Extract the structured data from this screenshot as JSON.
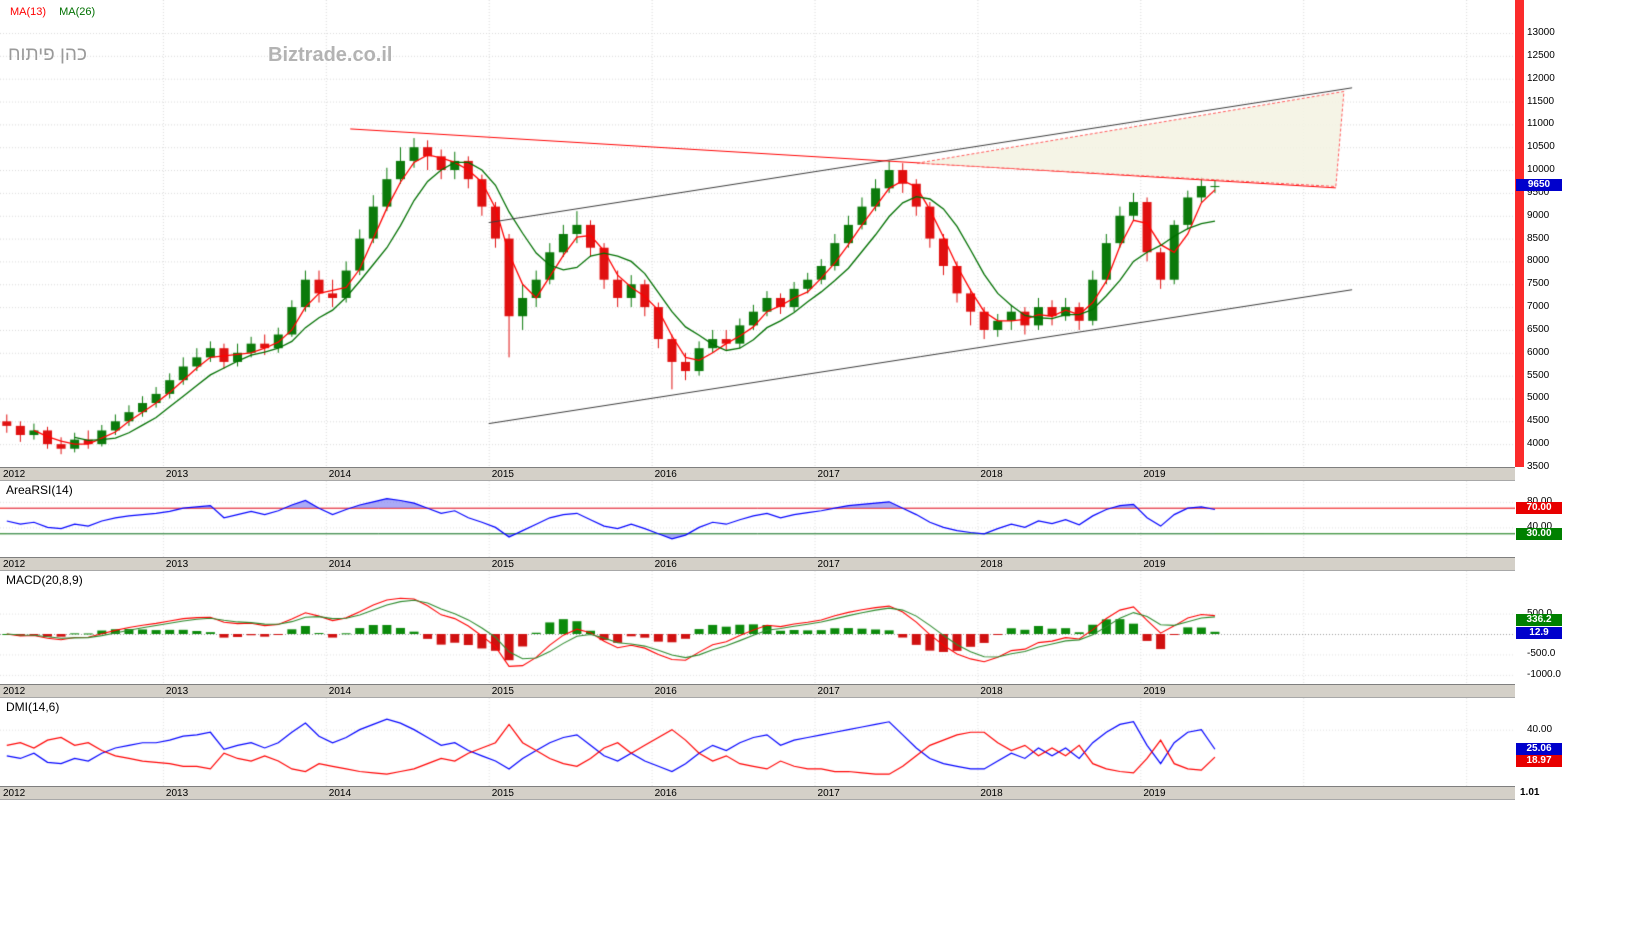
{
  "main": {
    "instrument": "כהן פיתוח",
    "watermark": "Biztrade.co.il",
    "last_price_label": "9650",
    "last_price_badge_color": "#0000cc",
    "legend": [
      {
        "label": "MA(13)",
        "color": "#ff0000"
      },
      {
        "label": "MA(26)",
        "color": "#007000"
      }
    ]
  },
  "x_axis": {
    "years": [
      "2012",
      "2013",
      "2014",
      "2015",
      "2016",
      "2017",
      "2018",
      "2019"
    ]
  },
  "panels": {
    "rsi": {
      "title": "AreaRSI(14)",
      "axis_labels": [
        {
          "v": 80,
          "text": "80.00"
        },
        {
          "v": 40,
          "text": "40.00"
        }
      ],
      "badges": [
        {
          "text": "70.00",
          "bg": "#e80000",
          "v": 70
        },
        {
          "text": "30.00",
          "bg": "#008000",
          "v": 30
        }
      ]
    },
    "macd": {
      "title": "MACD(20,8,9)",
      "axis_labels": [
        {
          "v": 500,
          "text": "500.0"
        },
        {
          "v": -500,
          "text": "-500.0"
        },
        {
          "v": -1000,
          "text": "-1000.0"
        }
      ],
      "badges": [
        {
          "text": "336.2",
          "bg": "#008000",
          "v": 336.2
        },
        {
          "text": "12.9",
          "bg": "#0000cc",
          "v": 12.9
        }
      ]
    },
    "dmi": {
      "title": "DMI(14,6)",
      "axis_labels": [
        {
          "v": 40,
          "text": "40.00"
        }
      ],
      "badges": [
        {
          "text": "25.06",
          "bg": "#0000cc",
          "v": 25.06
        },
        {
          "text": "18.97",
          "bg": "#e80000",
          "v": 18.97
        }
      ],
      "footer_value": "1.01"
    }
  },
  "chart_data": [
    {
      "type": "candlestick",
      "title": "כהן פיתוח",
      "x_start_year": 2012.0,
      "x_interval_years": 0.08333,
      "x_domain": [
        2012.0,
        2021.3
      ],
      "x_tick_years": [
        2012,
        2013,
        2014,
        2015,
        2016,
        2017,
        2018,
        2019
      ],
      "ylim": [
        3500,
        13000
      ],
      "y_tick_step": 500,
      "last_price": 9650,
      "up_color": "#0b7a0b",
      "down_color": "#e01010",
      "overlays": [
        {
          "name": "MA(13)",
          "color": "#ff0000",
          "sma_period": 3
        },
        {
          "name": "MA(26)",
          "color": "#007000",
          "sma_period": 6
        }
      ],
      "candles_ohlc": [
        [
          4500,
          4650,
          4250,
          4400
        ],
        [
          4400,
          4500,
          4050,
          4200
        ],
        [
          4200,
          4450,
          4100,
          4300
        ],
        [
          4300,
          4380,
          3900,
          4000
        ],
        [
          4000,
          4150,
          3780,
          3900
        ],
        [
          3900,
          4250,
          3820,
          4100
        ],
        [
          4100,
          4300,
          3900,
          4000
        ],
        [
          4000,
          4420,
          3950,
          4300
        ],
        [
          4300,
          4650,
          4200,
          4500
        ],
        [
          4500,
          4850,
          4400,
          4700
        ],
        [
          4700,
          5050,
          4600,
          4900
        ],
        [
          4900,
          5250,
          4800,
          5100
        ],
        [
          5100,
          5550,
          5000,
          5400
        ],
        [
          5400,
          5900,
          5300,
          5700
        ],
        [
          5700,
          6100,
          5600,
          5900
        ],
        [
          5900,
          6250,
          5800,
          6100
        ],
        [
          6100,
          6200,
          5650,
          5800
        ],
        [
          5800,
          6200,
          5700,
          6000
        ],
        [
          6000,
          6350,
          5900,
          6200
        ],
        [
          6200,
          6400,
          5950,
          6100
        ],
        [
          6100,
          6550,
          6000,
          6400
        ],
        [
          6400,
          7150,
          6350,
          7000
        ],
        [
          7000,
          7800,
          6900,
          7600
        ],
        [
          7600,
          7800,
          7100,
          7300
        ],
        [
          7300,
          7600,
          7000,
          7200
        ],
        [
          7200,
          8000,
          7100,
          7800
        ],
        [
          7800,
          8700,
          7700,
          8500
        ],
        [
          8500,
          9450,
          8400,
          9200
        ],
        [
          9200,
          10050,
          9100,
          9800
        ],
        [
          9800,
          10500,
          9700,
          10200
        ],
        [
          10200,
          10700,
          10050,
          10500
        ],
        [
          10500,
          10650,
          10000,
          10300
        ],
        [
          10300,
          10450,
          9800,
          10000
        ],
        [
          10000,
          10400,
          9800,
          10200
        ],
        [
          10200,
          10300,
          9600,
          9800
        ],
        [
          9800,
          9900,
          9000,
          9200
        ],
        [
          9200,
          9300,
          8300,
          8500
        ],
        [
          8500,
          8600,
          5900,
          6800
        ],
        [
          6800,
          7500,
          6500,
          7200
        ],
        [
          7200,
          7800,
          7000,
          7600
        ],
        [
          7600,
          8400,
          7500,
          8200
        ],
        [
          8200,
          8800,
          8100,
          8600
        ],
        [
          8600,
          9100,
          8400,
          8800
        ],
        [
          8800,
          8900,
          8100,
          8300
        ],
        [
          8300,
          8400,
          7400,
          7600
        ],
        [
          7600,
          7800,
          7000,
          7200
        ],
        [
          7200,
          7700,
          7000,
          7500
        ],
        [
          7500,
          7600,
          6800,
          7000
        ],
        [
          7000,
          7100,
          6100,
          6300
        ],
        [
          6300,
          6400,
          5200,
          5800
        ],
        [
          5800,
          6000,
          5400,
          5600
        ],
        [
          5600,
          6250,
          5500,
          6100
        ],
        [
          6100,
          6500,
          6000,
          6300
        ],
        [
          6300,
          6500,
          6050,
          6200
        ],
        [
          6200,
          6750,
          6100,
          6600
        ],
        [
          6600,
          7050,
          6500,
          6900
        ],
        [
          6900,
          7350,
          6800,
          7200
        ],
        [
          7200,
          7300,
          6850,
          7000
        ],
        [
          7000,
          7550,
          6900,
          7400
        ],
        [
          7400,
          7750,
          7300,
          7600
        ],
        [
          7600,
          8050,
          7500,
          7900
        ],
        [
          7900,
          8600,
          7800,
          8400
        ],
        [
          8400,
          9000,
          8300,
          8800
        ],
        [
          8800,
          9400,
          8700,
          9200
        ],
        [
          9200,
          9800,
          9100,
          9600
        ],
        [
          9600,
          10200,
          9500,
          10000
        ],
        [
          10000,
          10150,
          9500,
          9700
        ],
        [
          9700,
          9800,
          9000,
          9200
        ],
        [
          9200,
          9300,
          8300,
          8500
        ],
        [
          8500,
          8600,
          7700,
          7900
        ],
        [
          7900,
          8000,
          7100,
          7300
        ],
        [
          7300,
          7400,
          6600,
          6900
        ],
        [
          6900,
          7000,
          6300,
          6500
        ],
        [
          6500,
          6850,
          6350,
          6700
        ],
        [
          6700,
          7050,
          6500,
          6900
        ],
        [
          6900,
          7000,
          6400,
          6600
        ],
        [
          6600,
          7200,
          6500,
          7000
        ],
        [
          7000,
          7150,
          6600,
          6800
        ],
        [
          6800,
          7200,
          6700,
          7000
        ],
        [
          7000,
          7100,
          6500,
          6700
        ],
        [
          6700,
          7800,
          6600,
          7600
        ],
        [
          7600,
          8600,
          7500,
          8400
        ],
        [
          8400,
          9200,
          8300,
          9000
        ],
        [
          9000,
          9500,
          8900,
          9300
        ],
        [
          9300,
          9400,
          8000,
          8200
        ],
        [
          8200,
          8300,
          7400,
          7600
        ],
        [
          7600,
          8900,
          7500,
          8800
        ],
        [
          8800,
          9550,
          8700,
          9400
        ],
        [
          9400,
          9850,
          9300,
          9650
        ],
        [
          9650,
          9800,
          9500,
          9650
        ]
      ],
      "trendlines": [
        {
          "type": "line",
          "color": "#3c3c3c",
          "points": [
            [
              2015.0,
              8850
            ],
            [
              2020.3,
              11800
            ]
          ]
        },
        {
          "type": "line",
          "color": "#3c3c3c",
          "points": [
            [
              2015.0,
              4450
            ],
            [
              2020.3,
              7380
            ]
          ]
        },
        {
          "type": "line",
          "color": "#ff0000",
          "points": [
            [
              2014.15,
              10900
            ],
            [
              2020.2,
              9610
            ]
          ]
        }
      ],
      "wedge": {
        "fill": "#f4f2e3",
        "stroke": "#ff5a5a",
        "points": [
          [
            2017.63,
            10150
          ],
          [
            2020.25,
            11720
          ],
          [
            2020.2,
            9640
          ]
        ]
      }
    },
    {
      "type": "line",
      "name": "AreaRSI(14)",
      "ylim": [
        0,
        100
      ],
      "levels": {
        "overbought": 70,
        "oversold": 30
      },
      "line_color": "#0000ff",
      "area_color": "rgba(100,100,240,0.55)",
      "values": [
        50,
        45,
        48,
        40,
        38,
        45,
        42,
        50,
        55,
        58,
        60,
        62,
        65,
        70,
        72,
        74,
        55,
        60,
        65,
        60,
        66,
        75,
        82,
        70,
        60,
        68,
        75,
        80,
        85,
        82,
        78,
        70,
        62,
        66,
        55,
        48,
        40,
        25,
        35,
        45,
        55,
        60,
        62,
        52,
        42,
        38,
        45,
        38,
        30,
        22,
        28,
        40,
        48,
        45,
        52,
        58,
        62,
        55,
        60,
        63,
        66,
        70,
        74,
        76,
        78,
        80,
        70,
        60,
        48,
        40,
        35,
        32,
        30,
        38,
        45,
        40,
        50,
        46,
        52,
        44,
        58,
        68,
        74,
        76,
        55,
        42,
        60,
        70,
        72,
        68
      ]
    },
    {
      "type": "bar",
      "name": "MACD(20,8,9)",
      "ylim": [
        -1100,
        1100
      ],
      "hist_up_color": "#0b8a0b",
      "hist_down_color": "#d01010",
      "macd_line_color": "#ff0000",
      "signal_line_color": "#2e8b2e",
      "derived_from": "candlestick closes",
      "display_values": [
        336.2,
        12.9
      ]
    },
    {
      "type": "line",
      "name": "DMI(14,6)",
      "ylim": [
        0,
        55
      ],
      "series": [
        {
          "name": "DI+",
          "color": "#0000ff",
          "values": [
            20,
            18,
            22,
            15,
            14,
            18,
            16,
            22,
            26,
            28,
            30,
            30,
            32,
            35,
            36,
            38,
            25,
            28,
            30,
            26,
            30,
            38,
            45,
            35,
            30,
            34,
            40,
            44,
            48,
            45,
            40,
            34,
            28,
            30,
            24,
            20,
            16,
            10,
            18,
            24,
            30,
            34,
            36,
            28,
            20,
            16,
            22,
            16,
            12,
            8,
            14,
            22,
            28,
            24,
            30,
            34,
            36,
            28,
            32,
            34,
            36,
            38,
            40,
            42,
            44,
            46,
            36,
            26,
            18,
            14,
            12,
            10,
            10,
            16,
            22,
            18,
            26,
            20,
            26,
            18,
            30,
            38,
            44,
            46,
            28,
            14,
            30,
            38,
            40,
            25
          ]
        },
        {
          "name": "DI-",
          "color": "#ff0000",
          "values": [
            28,
            30,
            26,
            32,
            34,
            28,
            30,
            24,
            20,
            18,
            16,
            15,
            14,
            12,
            12,
            10,
            22,
            18,
            16,
            20,
            16,
            10,
            8,
            14,
            12,
            10,
            8,
            7,
            6,
            8,
            10,
            14,
            18,
            16,
            22,
            26,
            30,
            44,
            30,
            24,
            18,
            14,
            12,
            18,
            26,
            30,
            22,
            28,
            34,
            40,
            32,
            22,
            16,
            20,
            14,
            12,
            10,
            16,
            12,
            10,
            10,
            8,
            8,
            7,
            6,
            6,
            12,
            20,
            28,
            32,
            36,
            38,
            38,
            30,
            24,
            28,
            20,
            26,
            20,
            28,
            14,
            10,
            8,
            7,
            18,
            32,
            14,
            10,
            9,
            19
          ]
        }
      ]
    }
  ]
}
